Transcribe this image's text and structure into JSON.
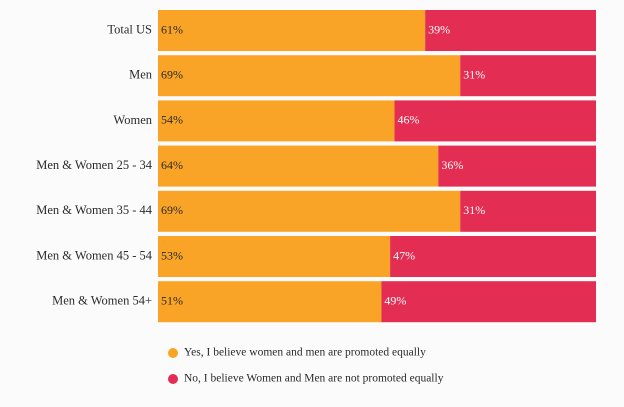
{
  "chart_data": {
    "type": "stacked-bar-horizontal",
    "categories": [
      "Total US",
      "Men",
      "Women",
      "Men & Women 25 - 34",
      "Men & Women 35 - 44",
      "Men & Women 45 - 54",
      "Men & Women 54+"
    ],
    "series": [
      {
        "name": "Yes, I believe women and men are promoted equally",
        "color": "#f9a427",
        "values": [
          61,
          69,
          54,
          64,
          69,
          53,
          51
        ],
        "value_labels": [
          "61%",
          "69%",
          "54%",
          "64%",
          "69%",
          "53%",
          "51%"
        ]
      },
      {
        "name": "No, I believe Women and Men are not promoted equally",
        "color": "#e32d52",
        "values": [
          39,
          31,
          46,
          36,
          31,
          47,
          49
        ],
        "value_labels": [
          "39%",
          "31%",
          "46%",
          "36%",
          "31%",
          "47%",
          "49%"
        ]
      }
    ]
  }
}
